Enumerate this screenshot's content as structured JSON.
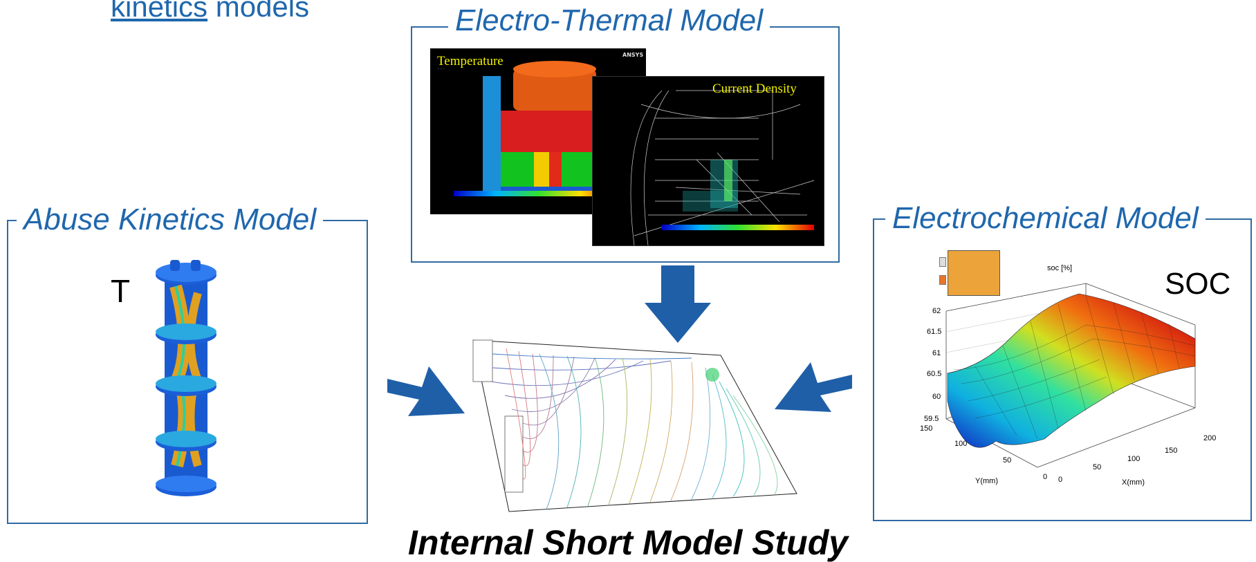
{
  "header": {
    "link_text": "kinetics",
    "rest_text": " models"
  },
  "boxes": {
    "electro_thermal": {
      "title": "Electro-Thermal Model"
    },
    "abuse_kinetics": {
      "title": "Abuse Kinetics Model"
    },
    "electrochemical": {
      "title": "Electrochemical Model"
    }
  },
  "panels": {
    "temperature_label": "Temperature",
    "current_density_label": "Current Density",
    "ansys_logo": "ANSYS",
    "abuse_T_label": "T",
    "soc_label": "SOC"
  },
  "soc_plot": {
    "title": "soc [%]",
    "z_ticks": [
      "62",
      "61.5",
      "61",
      "60.5",
      "60",
      "59.5"
    ],
    "y_ticks": [
      "150",
      "100",
      "50",
      "0"
    ],
    "x_ticks": [
      "0",
      "50",
      "100",
      "150",
      "200"
    ],
    "y_label": "Y(mm)",
    "x_label": "X(mm)"
  },
  "footer": {
    "title": "Internal Short Model Study"
  },
  "colors": {
    "accent_blue": "#1f67ad",
    "arrow_blue": "#1f5fa8",
    "border_blue": "#2f6aa3"
  }
}
